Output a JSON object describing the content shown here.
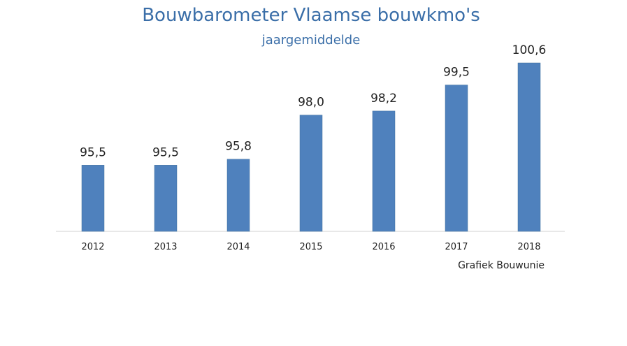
{
  "chart_data": {
    "type": "bar",
    "title": "Bouwbarometer Vlaamse bouwkmo's",
    "subtitle": "jaargemiddelde",
    "categories": [
      "2012",
      "2013",
      "2014",
      "2015",
      "2016",
      "2017",
      "2018"
    ],
    "values": [
      95.5,
      95.5,
      95.8,
      98.0,
      98.2,
      99.5,
      100.6
    ],
    "data_labels": [
      "95,5",
      "95,5",
      "95,8",
      "98,0",
      "98,2",
      "99,5",
      "100,6"
    ],
    "bar_color": "#4f81bd",
    "grid": false,
    "legend": "none",
    "ylim": [
      92.2,
      100.6
    ],
    "xlabel": "",
    "ylabel": ""
  },
  "credit": "Grafiek Bouwunie"
}
